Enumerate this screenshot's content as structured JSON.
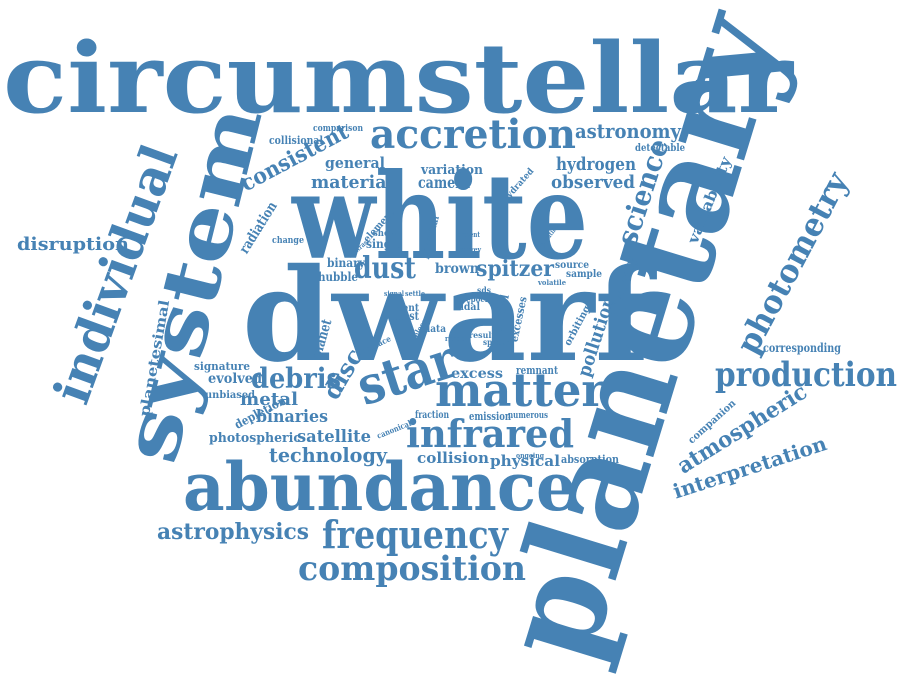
{
  "color": "#4682b4",
  "background": "#ffffff",
  "words": {
    "circumstellar": "circumstellar",
    "planetary": "planetary",
    "white": "white",
    "dwarf": "dwarf",
    "system": "system",
    "individual": "individual",
    "abundance": "abundance",
    "accretion": "accretion",
    "matter": "matter",
    "star": "star",
    "infrared": "infrared",
    "frequency": "frequency",
    "composition": "composition",
    "production": "production",
    "photometry": "photometry",
    "debris": "debris",
    "dust": "dust",
    "disc": "disc",
    "science": "science",
    "astrophysics": "astrophysics",
    "technology": "technology",
    "atmospheric": "atmospheric",
    "interpretation": "interpretation",
    "disruption": "disruption",
    "consistent": "consistent",
    "astronomy": "astronomy",
    "hydrogen": "hydrogen",
    "observed": "observed",
    "material": "material",
    "camera": "camera",
    "general": "general",
    "variation": "variation",
    "spitzer": "spitzer",
    "brown": "brown",
    "metal": "metal",
    "binaries": "binaries",
    "satellite": "satellite",
    "photospheric": "photospheric",
    "evolved": "evolved",
    "collision": "collision",
    "physical": "physical",
    "excess": "excess",
    "remnant": "remnant",
    "pollution": "pollution",
    "variability": "variability",
    "diversity": "diversity",
    "corresponding": "corresponding",
    "planetesimal": "planetesimal",
    "radiation": "radiation",
    "hubble": "hubble",
    "binary": "binary",
    "single": "single",
    "most": "most",
    "cent": "cent",
    "tidal": "tidal",
    "data": "data",
    "model": "model",
    "planet": "planet",
    "signature": "signature",
    "unbiased": "unbiased",
    "depletion": "depletion",
    "collisional": "collisional",
    "comparison": "comparison",
    "detectable": "detectable",
    "hydrated": "hydrated",
    "element": "element",
    "show": "show",
    "change": "change",
    "potential": "potential",
    "source": "source",
    "sample": "sample",
    "orbiting": "orbiting",
    "companion": "companion",
    "absorption": "absorption",
    "emission": "emission",
    "numerous": "numerous",
    "fraction": "fraction",
    "canonical": "canonical",
    "surface": "surface",
    "excesses": "excesses",
    "spectra": "spectra",
    "result": "result",
    "epoch": "epoch",
    "sds": "sds",
    "ongoing": "ongoing",
    "volatile": "volatile",
    "operating": "operating",
    "present": "present",
    "survey": "survey",
    "contrast": "contrast",
    "settle": "settle",
    "signal": "signal",
    "range": "range",
    "telescope": "telescope"
  }
}
